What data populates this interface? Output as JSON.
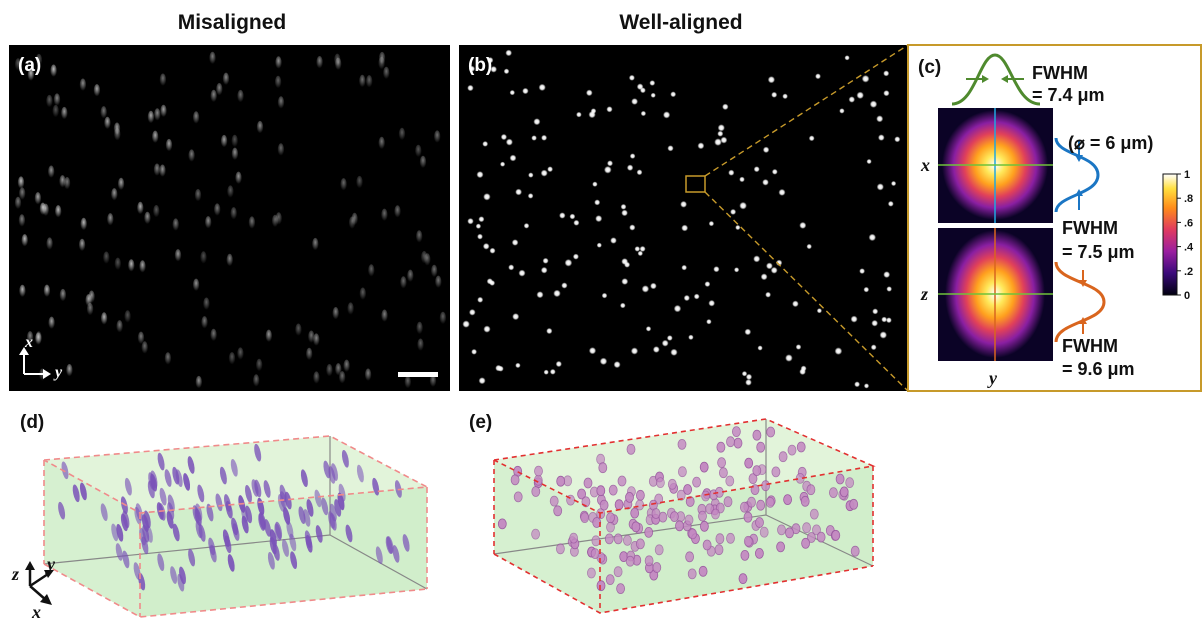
{
  "headings": {
    "misaligned": "Misaligned",
    "well_aligned": "Well-aligned"
  },
  "panels": {
    "a": "(a)",
    "b": "(b)",
    "c": "(c)",
    "d": "(d)",
    "e": "(e)"
  },
  "panel_a_axes": {
    "x": "x",
    "y": "y"
  },
  "panel_c": {
    "fwhm_top_line1": "FWHM",
    "fwhm_top_line2": "= 7.4 μm",
    "diameter": "(⌀ = 6 μm)",
    "fwhm_mid_line1": "FWHM",
    "fwhm_mid_line2": "= 7.5 μm",
    "fwhm_bottom_line1": "FWHM",
    "fwhm_bottom_line2": "= 9.6 μm",
    "axis_x": "x",
    "axis_z": "z",
    "axis_y": "y",
    "colorbar_ticks": [
      "1",
      ".8",
      ".6",
      ".4",
      ".2",
      "0"
    ],
    "colormap": [
      "#000010",
      "#3a0a7a",
      "#9a1fa0",
      "#e03a60",
      "#ff8c1a",
      "#ffe040",
      "#ffffff"
    ],
    "curve_colors": {
      "top": "#4f8a2e",
      "mid": "#1b76c4",
      "bottom": "#d9651e"
    }
  },
  "panel_d_axes": {
    "z": "z",
    "y": "y",
    "x": "x"
  },
  "colors": {
    "frame_gold": "#c79a2a",
    "box_fill": "#d9f0d4",
    "bead_purple": "#7a52b8",
    "bead_pink": "#c48ac2",
    "box_edge_red": "#e23030"
  }
}
